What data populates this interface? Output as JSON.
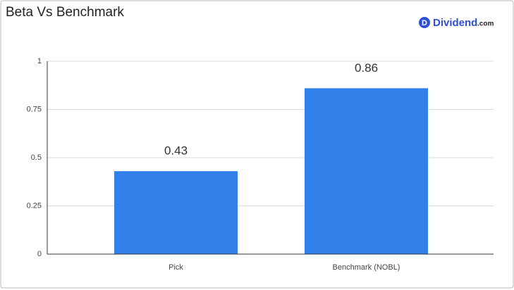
{
  "chart_data": {
    "type": "bar",
    "title": "Beta Vs Benchmark",
    "brand": {
      "icon": "D",
      "name": "Dividend",
      "suffix": ".com"
    },
    "categories": [
      "Pick",
      "Benchmark (NOBL)"
    ],
    "values": [
      0.43,
      0.86
    ],
    "color": "#3280ea",
    "ylim": [
      0,
      1
    ],
    "yticks": [
      0,
      0.25,
      0.5,
      0.75,
      1
    ],
    "grid": true,
    "data_labels": true
  }
}
